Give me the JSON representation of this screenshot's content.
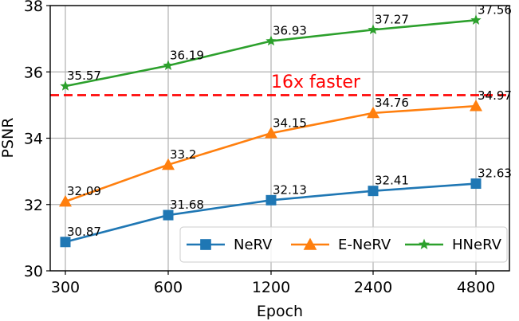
{
  "chart_data": {
    "type": "line",
    "xlabel": "Epoch",
    "ylabel": "PSNR",
    "categories": [
      "300",
      "600",
      "1200",
      "2400",
      "4800"
    ],
    "ylim": [
      30,
      38
    ],
    "yticks": [
      30,
      32,
      34,
      36,
      38
    ],
    "grid": true,
    "legend_position": "bottom-right",
    "series": [
      {
        "name": "NeRV",
        "values": [
          30.87,
          31.68,
          32.13,
          32.41,
          32.63
        ],
        "value_labels": [
          "30.87",
          "31.68",
          "32.13",
          "32.41",
          "32.63"
        ],
        "color": "#1f77b4",
        "marker": "square"
      },
      {
        "name": "E-NeRV",
        "values": [
          32.09,
          33.2,
          34.15,
          34.76,
          34.97
        ],
        "value_labels": [
          "32.09",
          "33.2",
          "34.15",
          "34.76",
          "34.97"
        ],
        "color": "#ff7f0e",
        "marker": "triangle"
      },
      {
        "name": "HNeRV",
        "values": [
          35.57,
          36.19,
          36.93,
          37.27,
          37.56
        ],
        "value_labels": [
          "35.57",
          "36.19",
          "36.93",
          "37.27",
          "37.56"
        ],
        "color": "#2ca02c",
        "marker": "star"
      }
    ],
    "reference_line": {
      "y": 35.3,
      "color": "#ff0000",
      "style": "dashed"
    },
    "annotation": {
      "text": "16x faster",
      "color": "#ff0000"
    }
  }
}
